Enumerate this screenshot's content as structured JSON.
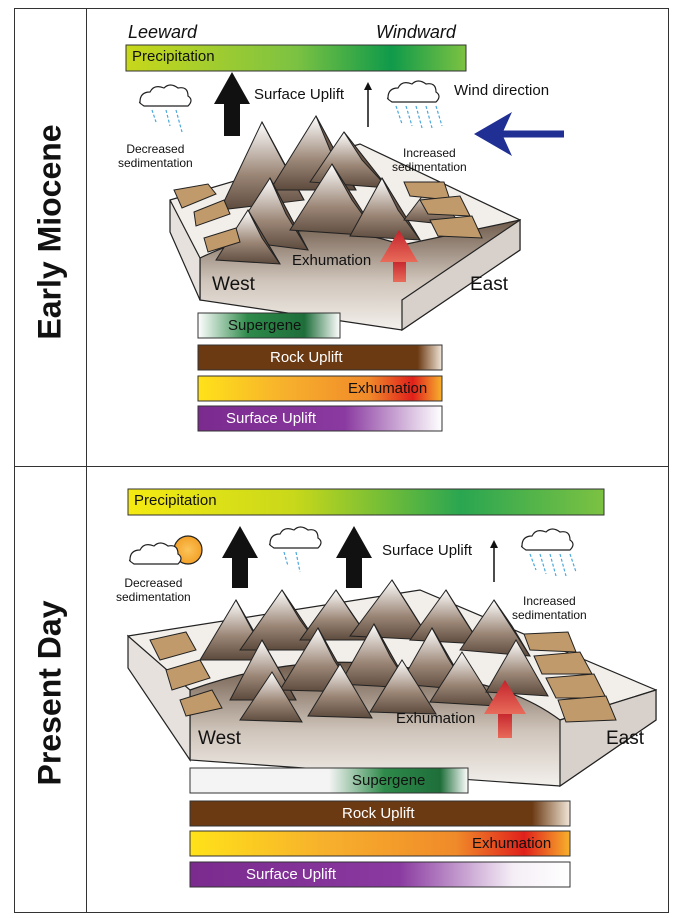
{
  "panels": {
    "top": {
      "label": "Early Miocene",
      "leeward": "Leeward",
      "windward": "Windward",
      "precipitation": "Precipitation",
      "surface_uplift": "Surface Uplift",
      "wind_direction": "Wind direction",
      "decreased_sedimentation": [
        "Decreased",
        "sedimentation"
      ],
      "increased_sedimentation": [
        "Increased",
        "sedimentation"
      ],
      "exhumation": "Exhumation",
      "west": "West",
      "east": "East",
      "bars": {
        "supergene": "Supergene",
        "rock_uplift": "Rock Uplift",
        "exhumation": "Exhumation",
        "surface_uplift": "Surface Uplift"
      }
    },
    "bottom": {
      "label": "Present Day",
      "precipitation": "Precipitation",
      "surface_uplift": "Surface Uplift",
      "decreased_sedimentation": [
        "Decreased",
        "sedimentation"
      ],
      "increased_sedimentation": [
        "Increased",
        "sedimentation"
      ],
      "exhumation": "Exhumation",
      "west": "West",
      "east": "East",
      "bars": {
        "supergene": "Supergene",
        "rock_uplift": "Rock Uplift",
        "exhumation": "Exhumation",
        "surface_uplift": "Surface Uplift"
      }
    }
  },
  "colors": {
    "precip_green": "#1aa04a",
    "precip_yellow": "#f5ea12",
    "rock_brown": "#6b3a13",
    "exhumation_red": "#e0201b",
    "exhumation_orange": "#f39a2b",
    "surface_purple": "#7b2a8e",
    "wind_arrow": "#1f2f94",
    "exhumation_arrow": "#c4232b",
    "sediment_tan": "#c19a6b",
    "cloud_rain": "#4aa8dd"
  }
}
